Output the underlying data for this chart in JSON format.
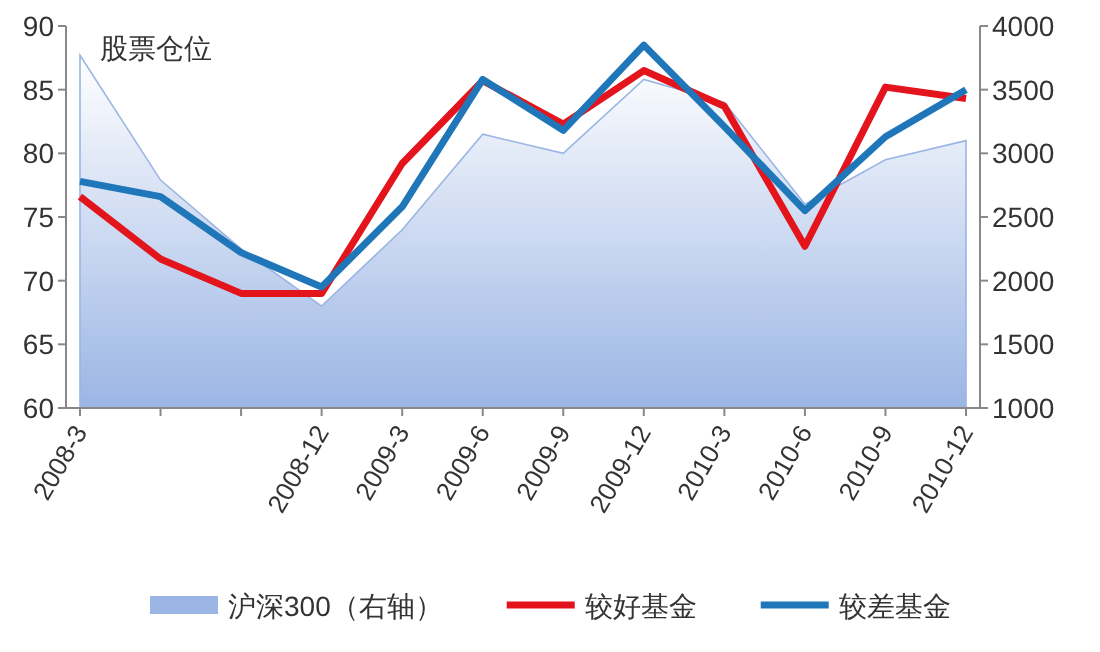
{
  "chart_data": {
    "type": "line",
    "ylabel": "股票仓位",
    "categories": [
      "2008-3",
      null,
      null,
      "2008-12",
      "2009-3",
      "2009-6",
      "2009-9",
      "2009-12",
      "2010-3",
      "2010-6",
      "2010-9",
      "2010-12"
    ],
    "series": [
      {
        "name": "沪深300（右轴）",
        "type": "area",
        "axis": "y2",
        "color": "#9bb5e4",
        "values": [
          3770,
          2790,
          2250,
          1800,
          2400,
          3150,
          3000,
          3580,
          3400,
          2600,
          2950,
          3100
        ]
      },
      {
        "name": "较好基金",
        "color": "#e3141c",
        "values": [
          76.6,
          71.7,
          69.0,
          69.0,
          79.2,
          85.7,
          82.3,
          86.5,
          83.7,
          72.7,
          85.2,
          84.3
        ]
      },
      {
        "name": "较差基金",
        "color": "#1f77b9",
        "values": [
          77.8,
          76.6,
          72.2,
          69.5,
          75.8,
          85.8,
          81.8,
          88.5,
          82.1,
          75.5,
          81.3,
          85.0
        ]
      }
    ],
    "ylim": [
      60,
      90
    ],
    "yticks": [
      60,
      65,
      70,
      75,
      80,
      85,
      90
    ],
    "y2lim": [
      1000,
      4000
    ],
    "y2ticks": [
      1000,
      1500,
      2000,
      2500,
      3000,
      3500,
      4000
    ],
    "grid": false,
    "legend": "bottom",
    "marker": "none",
    "line_style": "solid"
  }
}
